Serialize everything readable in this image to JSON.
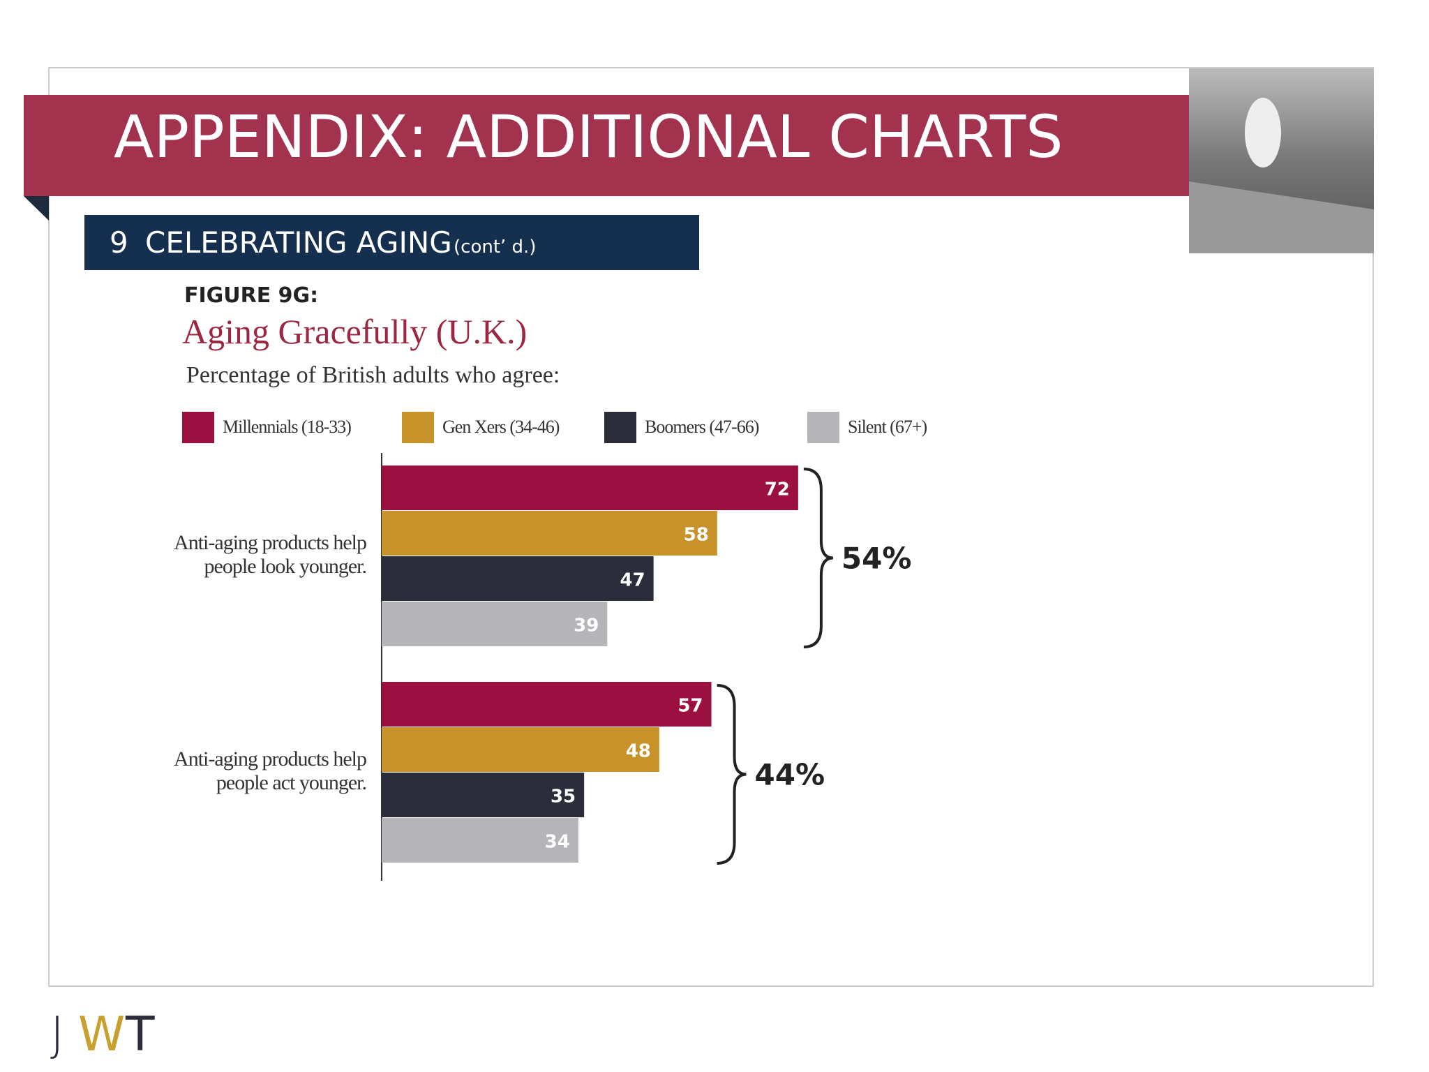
{
  "header": {
    "title": "APPENDIX: ADDITIONAL CHARTS"
  },
  "section": {
    "number": "9",
    "title": "CELEBRATING AGING",
    "note": "(cont’ d.)"
  },
  "figure_label": "FIGURE 9G:",
  "chart_data": {
    "type": "bar",
    "orientation": "horizontal",
    "title": "Aging Gracefully (U.K.)",
    "subtitle": "Percentage of British adults who agree:",
    "categories": [
      "Anti-aging products help people look younger.",
      "Anti-aging products help people act younger."
    ],
    "series": [
      {
        "name": "Millennials (18-33)",
        "color": "#9b1040",
        "values": [
          72,
          57
        ]
      },
      {
        "name": "Gen Xers (34-46)",
        "color": "#c8922a",
        "values": [
          58,
          48
        ]
      },
      {
        "name": "Boomers (47-66)",
        "color": "#2b2d3b",
        "values": [
          47,
          35
        ]
      },
      {
        "name": "Silent (67+)",
        "color": "#b4b4b9",
        "values": [
          39,
          34
        ]
      }
    ],
    "xlim": [
      0,
      100
    ],
    "annotations": [
      "54%",
      "44%"
    ],
    "legend": "top"
  },
  "logo": [
    "J",
    "W",
    "T"
  ]
}
